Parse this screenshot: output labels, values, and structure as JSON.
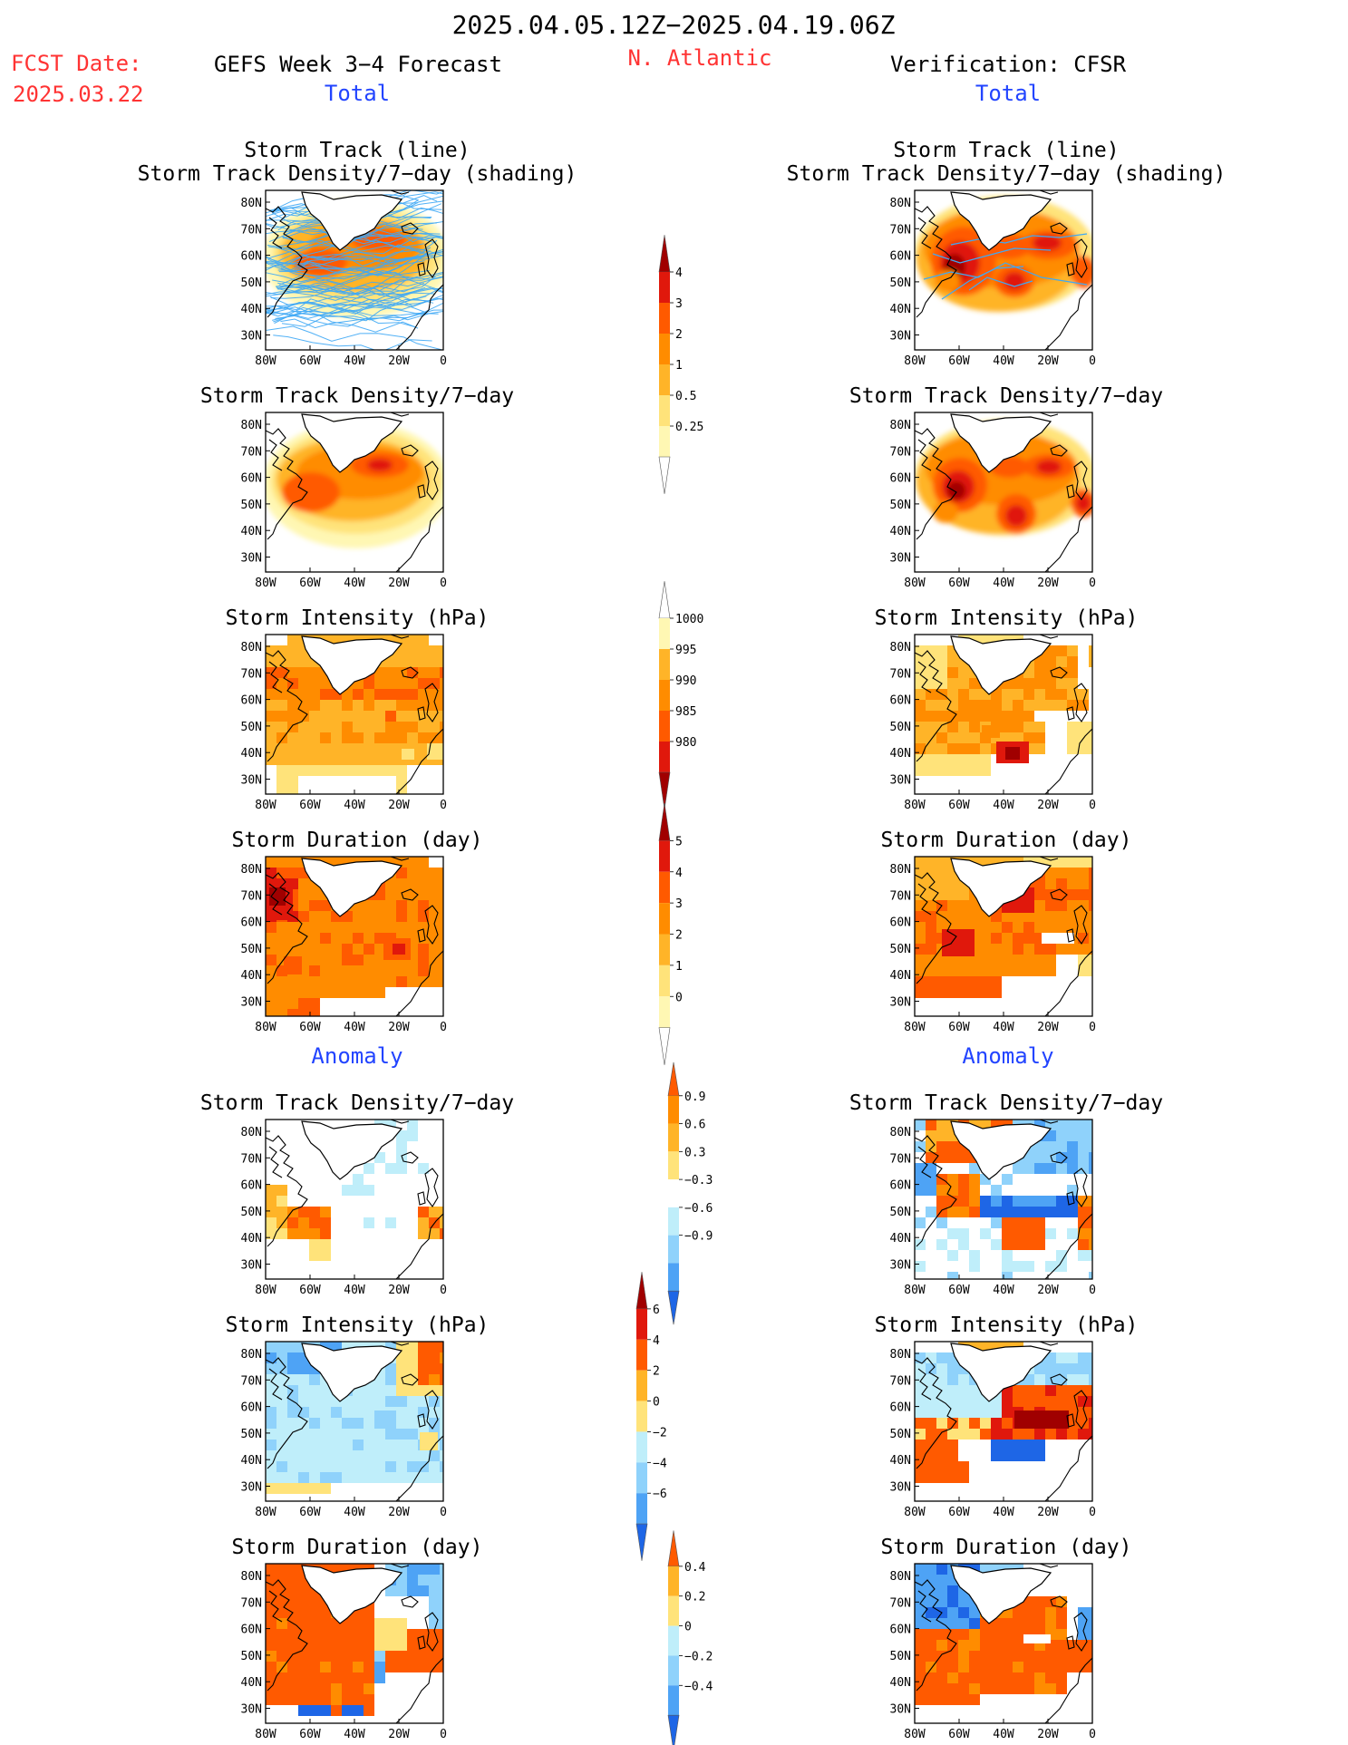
{
  "header": {
    "date_range": "2025.04.05.12Z−2025.04.19.06Z",
    "fcst_label": "FCST Date:",
    "fcst_date": "2025.03.22",
    "forecast_title": "GEFS Week 3−4 Forecast",
    "region": "N. Atlantic",
    "verification_title": "Verification: CFSR",
    "total_left": "Total",
    "total_right": "Total",
    "anomaly_left": "Anomaly",
    "anomaly_right": "Anomaly"
  },
  "axes": {
    "lat_labels": [
      "80N",
      "70N",
      "60N",
      "50N",
      "40N",
      "30N"
    ],
    "lon_labels": [
      "80W",
      "60W",
      "40W",
      "20W",
      "0"
    ]
  },
  "panels": {
    "track_line": [
      "Storm Track (line)",
      "Storm Track Density/7−day (shading)"
    ],
    "density": [
      "Storm Track Density/7−day"
    ],
    "intensity": [
      "Storm Intensity (hPa)"
    ],
    "duration": [
      "Storm Duration (day)"
    ]
  },
  "colorbars": {
    "density_total": [
      "4",
      "3",
      "2",
      "1",
      "0.5",
      "0.25"
    ],
    "intensity_total": [
      "1000",
      "995",
      "990",
      "985",
      "980"
    ],
    "duration_total": [
      "5",
      "4",
      "3",
      "2",
      "1",
      "0"
    ],
    "density_anom": [
      "0.9",
      "0.6",
      "0.3",
      "−0.3",
      "−0.6",
      "−0.9"
    ],
    "intensity_anom": [
      "6",
      "4",
      "2",
      "0",
      "−2",
      "−4",
      "−6"
    ],
    "duration_anom": [
      "0.4",
      "0.2",
      "0",
      "−0.2",
      "−0.4"
    ]
  },
  "colors": {
    "red_text": "#ff3333",
    "blue_text": "#2244ff",
    "track_line": "#3fa9f5"
  }
}
